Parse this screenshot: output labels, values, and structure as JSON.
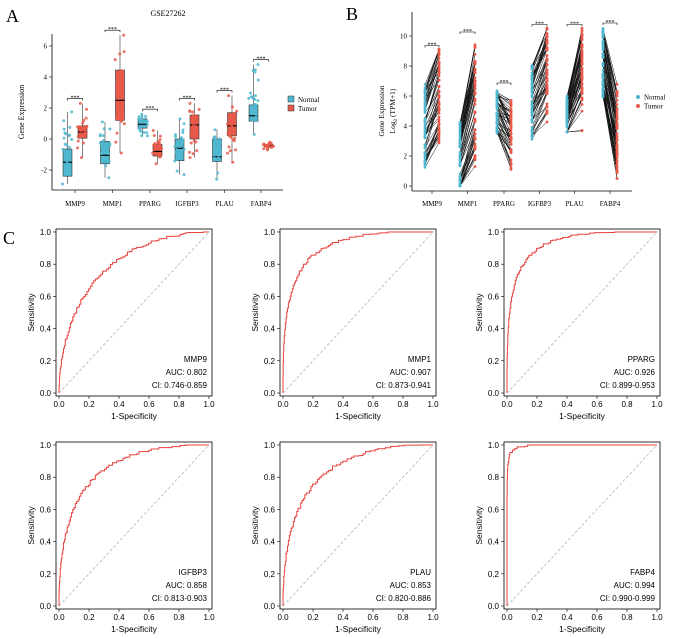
{
  "panel_labels": {
    "a": "A",
    "b": "B",
    "c": "C"
  },
  "colors": {
    "normal": "#4fb8d0",
    "tumor": "#e8594a",
    "roc": "#e8413c",
    "diagonal": "#aaaaaa"
  },
  "chart_data": [
    {
      "type": "box",
      "panel": "A",
      "title": "GSE27262",
      "xlabel": "",
      "ylabel": "Gene Expression",
      "ylim": [
        -3.2,
        7.2
      ],
      "yticks": [
        "-2",
        "0",
        "2",
        "4",
        "6"
      ],
      "categories": [
        "MMP9",
        "MMP1",
        "PPARG",
        "IGFBP3",
        "PLAU",
        "FABP4"
      ],
      "significance": [
        "***",
        "***",
        "***",
        "***",
        "***",
        "***"
      ],
      "legend": {
        "position": "right",
        "entries": [
          "Normal",
          "Tumor"
        ]
      },
      "series": [
        {
          "name": "Normal",
          "boxes": [
            {
              "q1": -2.4,
              "median": -1.5,
              "q3": -0.65,
              "min": -2.9,
              "max": 1.75
            },
            {
              "q1": -1.6,
              "median": -1.05,
              "q3": -0.15,
              "min": -2.5,
              "max": 1.1
            },
            {
              "q1": 0.7,
              "median": 0.95,
              "q3": 1.3,
              "min": 0.2,
              "max": 1.6
            },
            {
              "q1": -1.4,
              "median": -0.6,
              "q3": 0.0,
              "min": -2.3,
              "max": 1.3
            },
            {
              "q1": -1.45,
              "median": -1.15,
              "q3": 0.0,
              "min": -2.6,
              "max": 0.6
            },
            {
              "q1": 1.15,
              "median": 1.5,
              "q3": 2.2,
              "min": 0.3,
              "max": 4.8
            }
          ]
        },
        {
          "name": "Tumor",
          "boxes": [
            {
              "q1": 0.05,
              "median": 0.45,
              "q3": 0.85,
              "min": -1.2,
              "max": 2.3
            },
            {
              "q1": 1.2,
              "median": 2.5,
              "q3": 4.45,
              "min": -0.9,
              "max": 6.7
            },
            {
              "q1": -1.1,
              "median": -0.8,
              "q3": -0.35,
              "min": -1.6,
              "max": 0.55
            },
            {
              "q1": 0.0,
              "median": 0.9,
              "q3": 1.55,
              "min": -1.2,
              "max": 2.3
            },
            {
              "q1": 0.2,
              "median": 0.85,
              "q3": 1.7,
              "min": -1.5,
              "max": 2.8
            },
            {
              "q1": -0.5,
              "median": -0.45,
              "q3": -0.35,
              "min": -0.7,
              "max": -0.2
            }
          ]
        }
      ]
    },
    {
      "type": "paired-line",
      "panel": "B",
      "ylabel_line1": "Gene  Expression",
      "ylabel_line2_main": "Log",
      "ylabel_line2_sub": "2",
      "ylabel_line2_rest": " (TPM+1)",
      "ylim": [
        0,
        11
      ],
      "yticks": [
        "0",
        "2",
        "4",
        "6",
        "8",
        "10"
      ],
      "categories": [
        "MMP9",
        "MMP1",
        "PPARG",
        "IGFBP3",
        "PLAU",
        "FABP4"
      ],
      "significance": [
        "***",
        "***",
        "***",
        "***",
        "***",
        "***"
      ],
      "legend": {
        "position": "right",
        "entries": [
          "Normal",
          "Tumor"
        ]
      },
      "series": [
        {
          "name": "Normal",
          "ranges": [
            [
              0.8,
              7.0
            ],
            [
              0.0,
              5.2
            ],
            [
              3.3,
              6.6
            ],
            [
              2.7,
              8.2
            ],
            [
              3.6,
              6.8
            ],
            [
              5.5,
              10.6
            ]
          ],
          "centers": [
            4.0,
            2.0,
            5.0,
            5.6,
            4.6,
            8.2
          ]
        },
        {
          "name": "Tumor",
          "ranges": [
            [
              0.7,
              9.1
            ],
            [
              0.3,
              10.0
            ],
            [
              0.6,
              5.7
            ],
            [
              1.9,
              10.5
            ],
            [
              1.7,
              10.5
            ],
            [
              0.5,
              7.2
            ]
          ],
          "centers": [
            6.3,
            5.8,
            3.6,
            7.8,
            7.6,
            3.2
          ]
        }
      ]
    },
    {
      "type": "line",
      "panel": "C",
      "xlabel": "1-Specificity",
      "ylabel": "Sensitivity",
      "xlim": [
        0,
        1
      ],
      "ylim": [
        0,
        1
      ],
      "ticks": [
        "0.0",
        "0.2",
        "0.4",
        "0.6",
        "0.8",
        "1.0"
      ],
      "rocs": [
        {
          "gene": "MMP9",
          "auc_label": "AUC: 0.802",
          "ci_label": "CI: 0.746-0.859",
          "auc": 0.802
        },
        {
          "gene": "MMP1",
          "auc_label": "AUC: 0.907",
          "ci_label": "CI: 0.873-0.941",
          "auc": 0.907
        },
        {
          "gene": "PPARG",
          "auc_label": "AUC: 0.926",
          "ci_label": "CI: 0.899-0.953",
          "auc": 0.926
        },
        {
          "gene": "IGFBP3",
          "auc_label": "AUC: 0.858",
          "ci_label": "CI: 0.813-0.903",
          "auc": 0.858
        },
        {
          "gene": "PLAU",
          "auc_label": "AUC: 0.853",
          "ci_label": "CI: 0.820-0.886",
          "auc": 0.853
        },
        {
          "gene": "FABP4",
          "auc_label": "AUC: 0.994",
          "ci_label": "CI: 0.990-0.999",
          "auc": 0.994
        }
      ]
    }
  ]
}
